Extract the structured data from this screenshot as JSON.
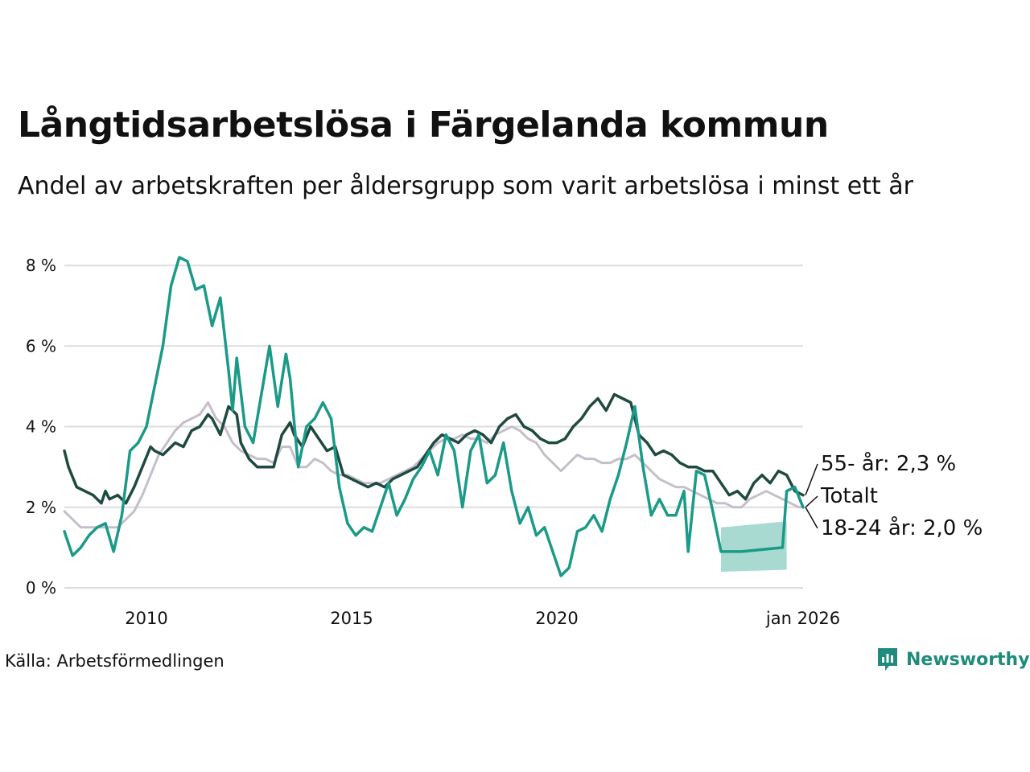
{
  "title": "Långtidsarbetslösa i Färgelanda kommun",
  "subtitle": "Andel av arbetskraften per åldersgrupp som varit arbetslösa i minst ett år",
  "source": "Källa: Arbetsförmedlingen",
  "brand": {
    "name": "Newsworthy",
    "icon": "newsworthy-logo-icon"
  },
  "colors": {
    "young": "#1a9a87",
    "old": "#1f4a40",
    "total": "#c4bfcb",
    "band": "#a3d8cf",
    "grid": "#dddddd"
  },
  "chart_data": {
    "type": "line",
    "ylim": [
      0,
      8.6
    ],
    "xlim": [
      2008.0,
      2026.0
    ],
    "y_ticks": [
      {
        "value": 0,
        "label": "0 %"
      },
      {
        "value": 2,
        "label": "2 %"
      },
      {
        "value": 4,
        "label": "4 %"
      },
      {
        "value": 6,
        "label": "6 %"
      },
      {
        "value": 8,
        "label": "8 %"
      }
    ],
    "x_ticks": [
      {
        "value": 2010,
        "label": "2010"
      },
      {
        "value": 2015,
        "label": "2015"
      },
      {
        "value": 2020,
        "label": "2020"
      },
      {
        "value": 2026,
        "label": "jan 2026"
      }
    ],
    "series": [
      {
        "name": "Totalt",
        "label": "Totalt",
        "points": [
          [
            2008.0,
            1.9
          ],
          [
            2008.2,
            1.7
          ],
          [
            2008.4,
            1.5
          ],
          [
            2008.8,
            1.5
          ],
          [
            2009.0,
            1.5
          ],
          [
            2009.3,
            1.5
          ],
          [
            2009.5,
            1.7
          ],
          [
            2009.7,
            1.9
          ],
          [
            2009.9,
            2.3
          ],
          [
            2010.1,
            2.8
          ],
          [
            2010.3,
            3.3
          ],
          [
            2010.5,
            3.6
          ],
          [
            2010.7,
            3.9
          ],
          [
            2010.9,
            4.1
          ],
          [
            2011.1,
            4.2
          ],
          [
            2011.3,
            4.3
          ],
          [
            2011.5,
            4.6
          ],
          [
            2011.7,
            4.2
          ],
          [
            2011.9,
            4.0
          ],
          [
            2012.1,
            3.6
          ],
          [
            2012.3,
            3.4
          ],
          [
            2012.5,
            3.3
          ],
          [
            2012.7,
            3.2
          ],
          [
            2012.9,
            3.2
          ],
          [
            2013.1,
            3.1
          ],
          [
            2013.3,
            3.5
          ],
          [
            2013.5,
            3.5
          ],
          [
            2013.7,
            3.0
          ],
          [
            2013.9,
            3.0
          ],
          [
            2014.1,
            3.2
          ],
          [
            2014.3,
            3.1
          ],
          [
            2014.5,
            2.9
          ],
          [
            2014.7,
            2.8
          ],
          [
            2014.9,
            2.8
          ],
          [
            2015.1,
            2.7
          ],
          [
            2015.3,
            2.6
          ],
          [
            2015.5,
            2.6
          ],
          [
            2015.7,
            2.6
          ],
          [
            2015.9,
            2.7
          ],
          [
            2016.1,
            2.8
          ],
          [
            2016.3,
            2.9
          ],
          [
            2016.5,
            3.0
          ],
          [
            2016.7,
            3.2
          ],
          [
            2016.9,
            3.4
          ],
          [
            2017.1,
            3.6
          ],
          [
            2017.3,
            3.7
          ],
          [
            2017.5,
            3.7
          ],
          [
            2017.7,
            3.8
          ],
          [
            2017.9,
            3.7
          ],
          [
            2018.1,
            3.7
          ],
          [
            2018.3,
            3.6
          ],
          [
            2018.5,
            3.8
          ],
          [
            2018.7,
            3.9
          ],
          [
            2018.9,
            4.0
          ],
          [
            2019.1,
            3.9
          ],
          [
            2019.3,
            3.7
          ],
          [
            2019.5,
            3.6
          ],
          [
            2019.7,
            3.3
          ],
          [
            2019.9,
            3.1
          ],
          [
            2020.1,
            2.9
          ],
          [
            2020.3,
            3.1
          ],
          [
            2020.5,
            3.3
          ],
          [
            2020.7,
            3.2
          ],
          [
            2020.9,
            3.2
          ],
          [
            2021.1,
            3.1
          ],
          [
            2021.3,
            3.1
          ],
          [
            2021.5,
            3.2
          ],
          [
            2021.7,
            3.2
          ],
          [
            2021.9,
            3.3
          ],
          [
            2022.1,
            3.1
          ],
          [
            2022.3,
            2.9
          ],
          [
            2022.5,
            2.7
          ],
          [
            2022.7,
            2.6
          ],
          [
            2022.9,
            2.5
          ],
          [
            2023.1,
            2.5
          ],
          [
            2023.3,
            2.4
          ],
          [
            2023.5,
            2.3
          ],
          [
            2023.7,
            2.2
          ],
          [
            2023.9,
            2.1
          ],
          [
            2024.1,
            2.1
          ],
          [
            2024.3,
            2.0
          ],
          [
            2024.5,
            2.0
          ],
          [
            2024.7,
            2.2
          ],
          [
            2024.9,
            2.3
          ],
          [
            2025.1,
            2.4
          ],
          [
            2025.3,
            2.3
          ],
          [
            2025.5,
            2.2
          ],
          [
            2025.7,
            2.1
          ],
          [
            2025.9,
            2.0
          ],
          [
            2026.0,
            2.0
          ]
        ]
      },
      {
        "name": "55- år",
        "label": "55- år: 2,3 %",
        "points": [
          [
            2008.0,
            3.4
          ],
          [
            2008.1,
            3.0
          ],
          [
            2008.3,
            2.5
          ],
          [
            2008.5,
            2.4
          ],
          [
            2008.7,
            2.3
          ],
          [
            2008.9,
            2.1
          ],
          [
            2009.0,
            2.4
          ],
          [
            2009.1,
            2.2
          ],
          [
            2009.3,
            2.3
          ],
          [
            2009.5,
            2.1
          ],
          [
            2009.7,
            2.5
          ],
          [
            2009.9,
            3.0
          ],
          [
            2010.1,
            3.5
          ],
          [
            2010.2,
            3.4
          ],
          [
            2010.4,
            3.3
          ],
          [
            2010.5,
            3.4
          ],
          [
            2010.7,
            3.6
          ],
          [
            2010.9,
            3.5
          ],
          [
            2011.1,
            3.9
          ],
          [
            2011.3,
            4.0
          ],
          [
            2011.5,
            4.3
          ],
          [
            2011.6,
            4.2
          ],
          [
            2011.8,
            3.8
          ],
          [
            2012.0,
            4.5
          ],
          [
            2012.2,
            4.3
          ],
          [
            2012.3,
            3.6
          ],
          [
            2012.5,
            3.2
          ],
          [
            2012.7,
            3.0
          ],
          [
            2012.9,
            3.0
          ],
          [
            2013.1,
            3.0
          ],
          [
            2013.3,
            3.8
          ],
          [
            2013.5,
            4.1
          ],
          [
            2013.6,
            3.8
          ],
          [
            2013.8,
            3.5
          ],
          [
            2014.0,
            4.0
          ],
          [
            2014.2,
            3.7
          ],
          [
            2014.4,
            3.4
          ],
          [
            2014.6,
            3.5
          ],
          [
            2014.8,
            2.8
          ],
          [
            2015.0,
            2.7
          ],
          [
            2015.2,
            2.6
          ],
          [
            2015.4,
            2.5
          ],
          [
            2015.6,
            2.6
          ],
          [
            2015.8,
            2.5
          ],
          [
            2016.0,
            2.7
          ],
          [
            2016.2,
            2.8
          ],
          [
            2016.4,
            2.9
          ],
          [
            2016.6,
            3.0
          ],
          [
            2016.8,
            3.3
          ],
          [
            2017.0,
            3.6
          ],
          [
            2017.2,
            3.8
          ],
          [
            2017.4,
            3.7
          ],
          [
            2017.6,
            3.6
          ],
          [
            2017.8,
            3.8
          ],
          [
            2018.0,
            3.9
          ],
          [
            2018.2,
            3.8
          ],
          [
            2018.4,
            3.6
          ],
          [
            2018.6,
            4.0
          ],
          [
            2018.8,
            4.2
          ],
          [
            2019.0,
            4.3
          ],
          [
            2019.2,
            4.0
          ],
          [
            2019.4,
            3.9
          ],
          [
            2019.6,
            3.7
          ],
          [
            2019.8,
            3.6
          ],
          [
            2020.0,
            3.6
          ],
          [
            2020.2,
            3.7
          ],
          [
            2020.4,
            4.0
          ],
          [
            2020.6,
            4.2
          ],
          [
            2020.8,
            4.5
          ],
          [
            2021.0,
            4.7
          ],
          [
            2021.2,
            4.4
          ],
          [
            2021.4,
            4.8
          ],
          [
            2021.6,
            4.7
          ],
          [
            2021.8,
            4.6
          ],
          [
            2022.0,
            3.8
          ],
          [
            2022.2,
            3.6
          ],
          [
            2022.4,
            3.3
          ],
          [
            2022.6,
            3.4
          ],
          [
            2022.8,
            3.3
          ],
          [
            2023.0,
            3.1
          ],
          [
            2023.2,
            3.0
          ],
          [
            2023.4,
            3.0
          ],
          [
            2023.6,
            2.9
          ],
          [
            2023.8,
            2.9
          ],
          [
            2024.0,
            2.6
          ],
          [
            2024.2,
            2.3
          ],
          [
            2024.4,
            2.4
          ],
          [
            2024.6,
            2.2
          ],
          [
            2024.8,
            2.6
          ],
          [
            2025.0,
            2.8
          ],
          [
            2025.2,
            2.6
          ],
          [
            2025.4,
            2.9
          ],
          [
            2025.6,
            2.8
          ],
          [
            2025.8,
            2.4
          ],
          [
            2026.0,
            2.3
          ]
        ]
      },
      {
        "name": "18-24 år",
        "label": "18-24 år: 2,0 %",
        "points": [
          [
            2008.0,
            1.4
          ],
          [
            2008.2,
            0.8
          ],
          [
            2008.4,
            1.0
          ],
          [
            2008.6,
            1.3
          ],
          [
            2008.8,
            1.5
          ],
          [
            2009.0,
            1.6
          ],
          [
            2009.2,
            0.9
          ],
          [
            2009.4,
            1.8
          ],
          [
            2009.6,
            3.4
          ],
          [
            2009.8,
            3.6
          ],
          [
            2010.0,
            4.0
          ],
          [
            2010.2,
            5.0
          ],
          [
            2010.4,
            6.0
          ],
          [
            2010.6,
            7.5
          ],
          [
            2010.8,
            8.2
          ],
          [
            2011.0,
            8.1
          ],
          [
            2011.2,
            7.4
          ],
          [
            2011.4,
            7.5
          ],
          [
            2011.6,
            6.5
          ],
          [
            2011.8,
            7.2
          ],
          [
            2012.0,
            5.4
          ],
          [
            2012.1,
            4.4
          ],
          [
            2012.2,
            5.7
          ],
          [
            2012.4,
            4.0
          ],
          [
            2012.6,
            3.6
          ],
          [
            2012.8,
            4.8
          ],
          [
            2013.0,
            6.0
          ],
          [
            2013.2,
            4.5
          ],
          [
            2013.4,
            5.8
          ],
          [
            2013.5,
            5.2
          ],
          [
            2013.7,
            3.0
          ],
          [
            2013.9,
            4.0
          ],
          [
            2014.1,
            4.2
          ],
          [
            2014.3,
            4.6
          ],
          [
            2014.5,
            4.2
          ],
          [
            2014.7,
            2.5
          ],
          [
            2014.9,
            1.6
          ],
          [
            2015.1,
            1.3
          ],
          [
            2015.3,
            1.5
          ],
          [
            2015.5,
            1.4
          ],
          [
            2015.7,
            2.0
          ],
          [
            2015.9,
            2.6
          ],
          [
            2016.1,
            1.8
          ],
          [
            2016.3,
            2.2
          ],
          [
            2016.5,
            2.7
          ],
          [
            2016.7,
            3.0
          ],
          [
            2016.9,
            3.4
          ],
          [
            2017.1,
            2.8
          ],
          [
            2017.3,
            3.8
          ],
          [
            2017.5,
            3.4
          ],
          [
            2017.7,
            2.0
          ],
          [
            2017.9,
            3.4
          ],
          [
            2018.1,
            3.8
          ],
          [
            2018.3,
            2.6
          ],
          [
            2018.5,
            2.8
          ],
          [
            2018.7,
            3.6
          ],
          [
            2018.9,
            2.4
          ],
          [
            2019.1,
            1.6
          ],
          [
            2019.3,
            2.0
          ],
          [
            2019.5,
            1.3
          ],
          [
            2019.7,
            1.5
          ],
          [
            2019.9,
            0.9
          ],
          [
            2020.1,
            0.3
          ],
          [
            2020.3,
            0.5
          ],
          [
            2020.5,
            1.4
          ],
          [
            2020.7,
            1.5
          ],
          [
            2020.9,
            1.8
          ],
          [
            2021.1,
            1.4
          ],
          [
            2021.3,
            2.2
          ],
          [
            2021.5,
            2.8
          ],
          [
            2021.7,
            3.6
          ],
          [
            2021.9,
            4.5
          ],
          [
            2022.1,
            3.0
          ],
          [
            2022.3,
            1.8
          ],
          [
            2022.5,
            2.2
          ],
          [
            2022.7,
            1.8
          ],
          [
            2022.9,
            1.8
          ],
          [
            2023.1,
            2.4
          ],
          [
            2023.2,
            0.9
          ],
          [
            2023.4,
            2.9
          ],
          [
            2023.6,
            2.8
          ],
          [
            2023.8,
            1.9
          ],
          [
            2024.0,
            0.9
          ],
          [
            2024.5,
            0.9
          ],
          [
            2025.0,
            0.95
          ],
          [
            2025.5,
            1.0
          ],
          [
            2025.6,
            2.4
          ],
          [
            2025.8,
            2.5
          ],
          [
            2026.0,
            2.0
          ]
        ]
      }
    ],
    "band": {
      "name": "18-24 år osäkerhetsintervall",
      "x": [
        2024.0,
        2025.6
      ],
      "lower": [
        0.4,
        0.45
      ],
      "upper": [
        1.5,
        1.65
      ]
    }
  }
}
